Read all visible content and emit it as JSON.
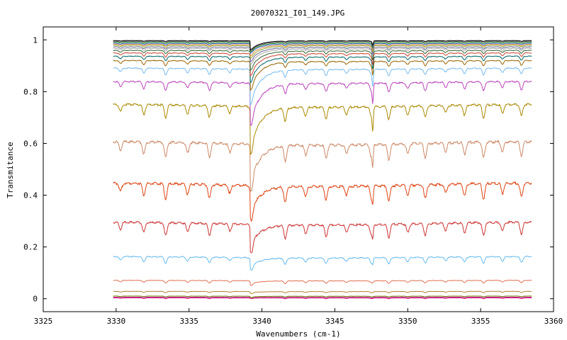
{
  "chart_data": {
    "type": "line",
    "title": "20070321_I01_149.JPG",
    "xlabel": "Wavenumbers (cm-1)",
    "ylabel": "Transmitance",
    "xlim": [
      3325,
      3360
    ],
    "ylim": [
      -0.05,
      1.05
    ],
    "x_ticks": [
      3325,
      3330,
      3335,
      3340,
      3345,
      3350,
      3355,
      3360
    ],
    "y_ticks": [
      0,
      0.2,
      0.4,
      0.6,
      0.8,
      1
    ],
    "x_range_data": [
      3329.8,
      3358.5
    ],
    "grid": false,
    "legend": "none",
    "dip_positions": [
      3330.3,
      3331.9,
      3333.4,
      3334.9,
      3336.4,
      3337.8,
      3339.3,
      3341.6,
      3343.0,
      3344.4,
      3345.8,
      3347.5,
      3348.7,
      3350.0,
      3351.2,
      3352.6,
      3353.9,
      3355.2,
      3356.5,
      3357.8
    ],
    "series": [
      {
        "color": "#e5007e",
        "baseline": 0.003,
        "dip_depth": 0.003,
        "strong_dip": 0.0
      },
      {
        "color": "#aa3388",
        "baseline": 0.006,
        "dip_depth": 0.002,
        "strong_dip": 0.002
      },
      {
        "color": "#777700",
        "baseline": 0.01,
        "dip_depth": 0.003,
        "strong_dip": 0.003
      },
      {
        "color": "#b08030",
        "baseline": 0.028,
        "dip_depth": 0.005,
        "strong_dip": 0.004
      },
      {
        "color": "#e07050",
        "baseline": 0.07,
        "dip_depth": 0.01,
        "strong_dip": 0.01
      },
      {
        "color": "#66bbee",
        "baseline": 0.16,
        "dip_depth": 0.025,
        "strong_dip": 0.03
      },
      {
        "color": "#cc3333",
        "baseline": 0.29,
        "dip_depth": 0.05,
        "strong_dip": 0.07
      },
      {
        "color": "#dd4411",
        "baseline": 0.44,
        "dip_depth": 0.06,
        "strong_dip": 0.09
      },
      {
        "color": "#cc8866",
        "baseline": 0.6,
        "dip_depth": 0.06,
        "strong_dip": 0.13
      },
      {
        "color": "#aa8800",
        "baseline": 0.745,
        "dip_depth": 0.05,
        "strong_dip": 0.14
      },
      {
        "color": "#bb44bb",
        "baseline": 0.835,
        "dip_depth": 0.035,
        "strong_dip": 0.13
      },
      {
        "color": "#77bbee",
        "baseline": 0.888,
        "dip_depth": 0.025,
        "strong_dip": 0.11
      },
      {
        "color": "#996600",
        "baseline": 0.918,
        "dip_depth": 0.02,
        "strong_dip": 0.09
      },
      {
        "color": "#006666",
        "baseline": 0.935,
        "dip_depth": 0.017,
        "strong_dip": 0.08
      },
      {
        "color": "#cc4433",
        "baseline": 0.948,
        "dip_depth": 0.015,
        "strong_dip": 0.07
      },
      {
        "color": "#336633",
        "baseline": 0.958,
        "dip_depth": 0.012,
        "strong_dip": 0.06
      },
      {
        "color": "#aaaaaa",
        "baseline": 0.966,
        "dip_depth": 0.01,
        "strong_dip": 0.05
      },
      {
        "color": "#666699",
        "baseline": 0.972,
        "dip_depth": 0.009,
        "strong_dip": 0.045
      },
      {
        "color": "#99aa33",
        "baseline": 0.978,
        "dip_depth": 0.008,
        "strong_dip": 0.04
      },
      {
        "color": "#dd8844",
        "baseline": 0.982,
        "dip_depth": 0.007,
        "strong_dip": 0.035
      },
      {
        "color": "#3366cc",
        "baseline": 0.986,
        "dip_depth": 0.006,
        "strong_dip": 0.03
      },
      {
        "color": "#228822",
        "baseline": 0.99,
        "dip_depth": 0.005,
        "strong_dip": 0.03
      },
      {
        "color": "#555555",
        "baseline": 0.994,
        "dip_depth": 0.004,
        "strong_dip": 0.03
      },
      {
        "color": "#000000",
        "baseline": 0.997,
        "dip_depth": 0.003,
        "strong_dip": 0.03
      }
    ]
  }
}
